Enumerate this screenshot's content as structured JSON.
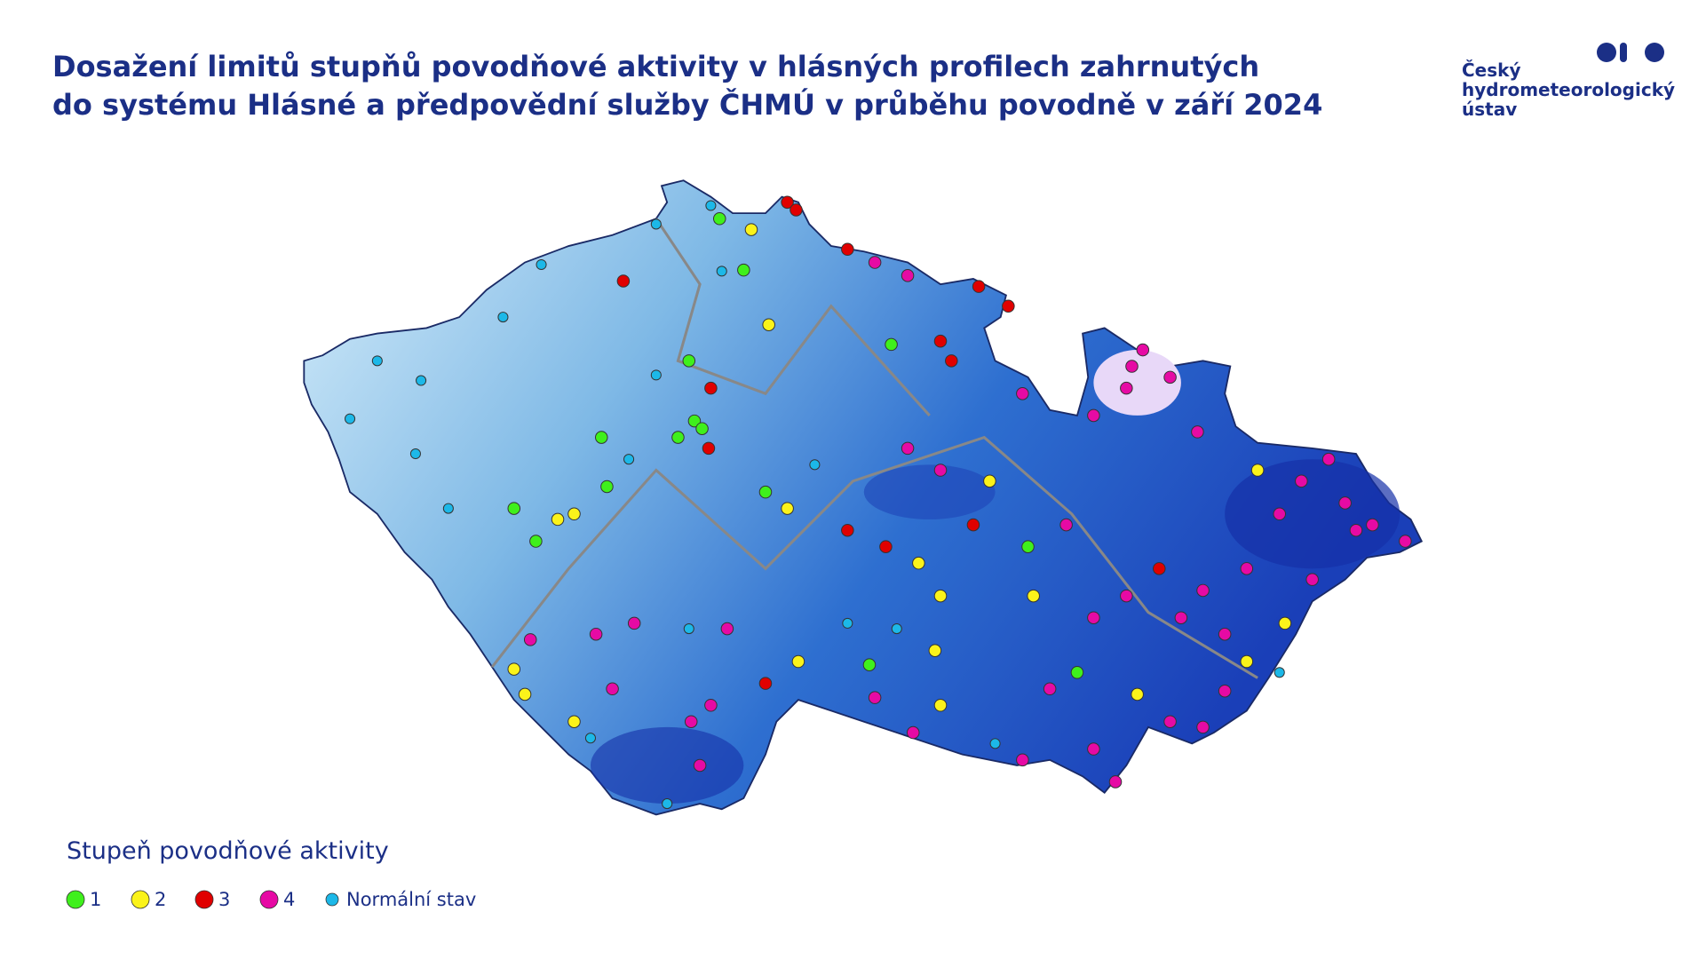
{
  "header": {
    "title": [
      "Dosažení limitů stupňů povodňové aktivity v hlásných profilech zahrnutých",
      "do systému Hlásné a předpovědní služby ČHMÚ v průběhu povodně v září 2024"
    ]
  },
  "logo": {
    "text": [
      "Český",
      "hydrometeorologický",
      "ústav"
    ]
  },
  "legend": {
    "title": "Stupeň povodňové aktivity",
    "items": [
      {
        "label": "1",
        "color": "#3ff01c"
      },
      {
        "label": "2",
        "color": "#fbf31a"
      },
      {
        "label": "3",
        "color": "#e00000"
      },
      {
        "label": "4",
        "color": "#e60aa4"
      },
      {
        "label": "Normální stav",
        "color": "#1cb8e8"
      }
    ]
  }
}
